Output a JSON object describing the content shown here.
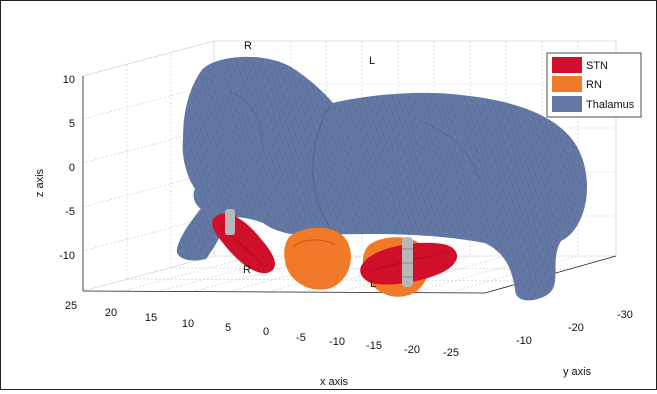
{
  "chart_data": {
    "type": "3d-surface",
    "title": "",
    "xlabel": "x axis",
    "ylabel": "y axis",
    "zlabel": "z axis",
    "x_ticks": [
      "25",
      "20",
      "15",
      "10",
      "5",
      "0",
      "-5",
      "-10",
      "-15",
      "-20",
      "-25"
    ],
    "y_ticks": [
      "-10",
      "-20",
      "-30"
    ],
    "z_ticks": [
      "10",
      "5",
      "0",
      "-5",
      "-10"
    ],
    "grid": true,
    "legend_position": "top-right",
    "series": [
      {
        "name": "STN",
        "color": "#d0102a"
      },
      {
        "name": "RN",
        "color": "#f07a28"
      },
      {
        "name": "Thalamus",
        "color": "#6479a6"
      }
    ],
    "annotations": [
      {
        "text": "R",
        "place": "top-back-left"
      },
      {
        "text": "L",
        "place": "top-back-right"
      },
      {
        "text": "R",
        "place": "floor-left"
      },
      {
        "text": "L",
        "place": "floor-right"
      }
    ]
  }
}
